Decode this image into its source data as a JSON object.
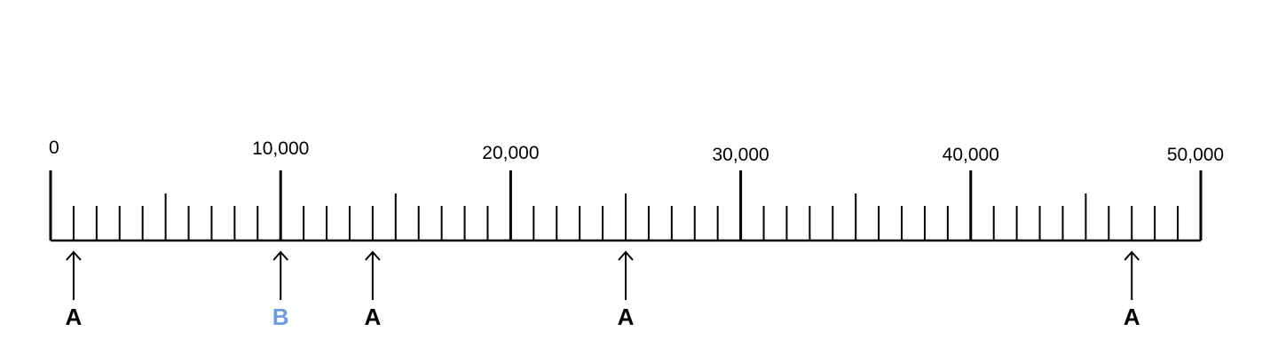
{
  "number_line": {
    "min": 0,
    "max": 50000,
    "major_step": 10000,
    "mid_step": 5000,
    "minor_step": 1000,
    "major_labels": [
      "0",
      "10,000",
      "20,000",
      "30,000",
      "40,000",
      "50,000"
    ]
  },
  "markers": [
    {
      "letter": "A",
      "value": 1000,
      "color": "#000000"
    },
    {
      "letter": "B",
      "value": 10000,
      "color": "#6b9be3"
    },
    {
      "letter": "A",
      "value": 14000,
      "color": "#000000"
    },
    {
      "letter": "A",
      "value": 25000,
      "color": "#000000"
    },
    {
      "letter": "A",
      "value": 47000,
      "color": "#000000"
    }
  ]
}
